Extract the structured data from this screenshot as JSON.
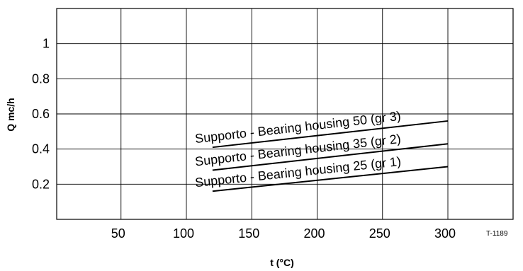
{
  "chart_data": {
    "type": "line",
    "xlabel": "t (°C)",
    "ylabel": "Q mc/h",
    "xlim": [
      0,
      300
    ],
    "ylim": [
      0,
      1.2
    ],
    "x_ticks": [
      50,
      100,
      150,
      200,
      250,
      300
    ],
    "x_tick_labels": [
      "50",
      "100",
      "150",
      "200",
      "250",
      "300"
    ],
    "y_ticks": [
      0.2,
      0.4,
      0.6,
      0.8,
      1.0
    ],
    "y_tick_labels": [
      "0.2",
      "0.4",
      "0.6",
      "0.8",
      "1"
    ],
    "grid": true,
    "legend": "none",
    "series": [
      {
        "name": "Supporto - Bearing housing 50 (gr 3)",
        "x": [
          120,
          300
        ],
        "y": [
          0.41,
          0.56
        ]
      },
      {
        "name": "Supporto - Bearing housing 35 (gr 2)",
        "x": [
          120,
          300
        ],
        "y": [
          0.28,
          0.43
        ]
      },
      {
        "name": "Supporto - Bearing housing 25 (gr 1)",
        "x": [
          120,
          300
        ],
        "y": [
          0.16,
          0.3
        ]
      }
    ],
    "annotations": [
      "T-1189"
    ]
  },
  "colors": {
    "line": "#000000",
    "grid": "#000000",
    "background": "#ffffff"
  }
}
